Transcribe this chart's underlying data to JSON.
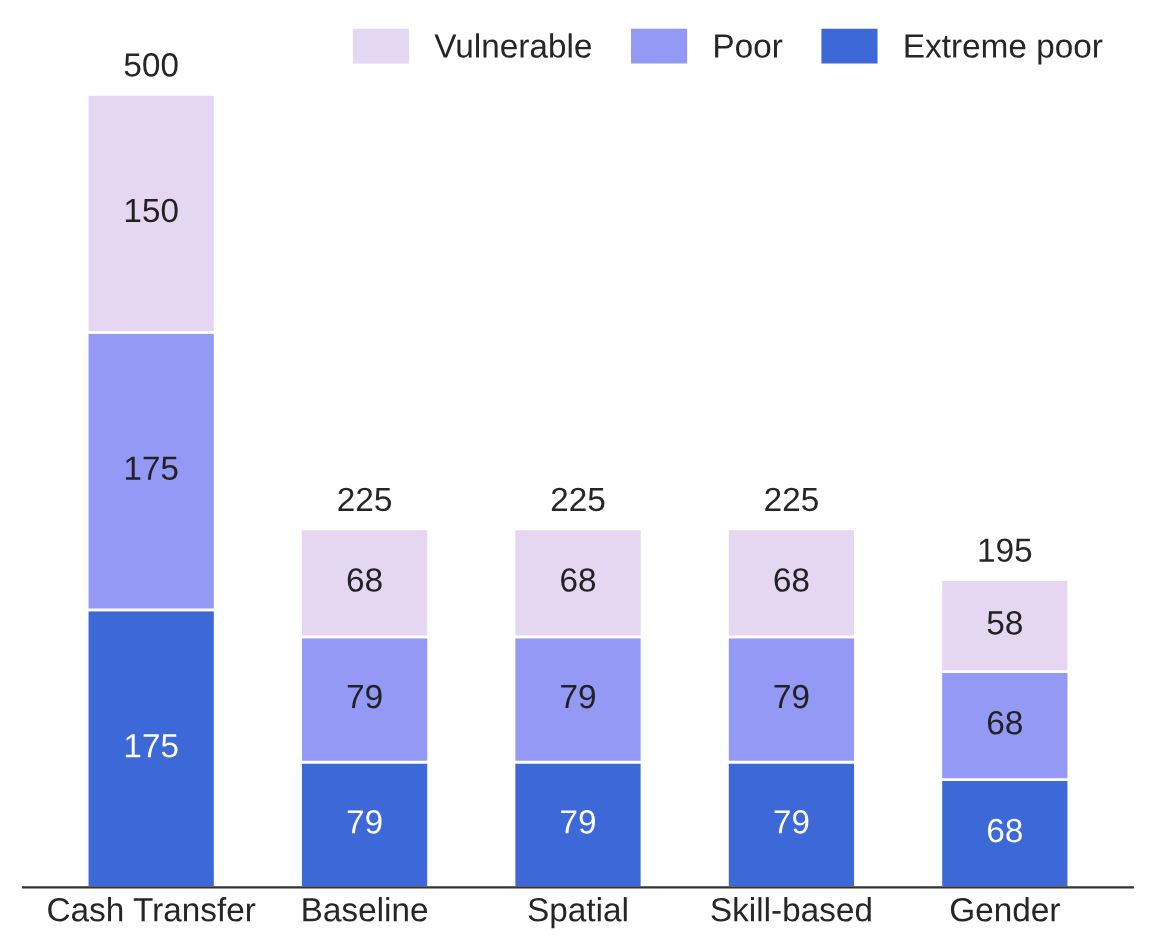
{
  "chart_data": {
    "type": "bar",
    "stacked": true,
    "categories": [
      "Cash Transfer",
      "Baseline",
      "Spatial",
      "Skill-based",
      "Gender"
    ],
    "series": [
      {
        "name": "Extreme poor",
        "color": "#3d68d8",
        "values": [
          175,
          79,
          79,
          79,
          68
        ]
      },
      {
        "name": "Poor",
        "color": "#9499f6",
        "values": [
          175,
          79,
          79,
          79,
          68
        ]
      },
      {
        "name": "Vulnerable",
        "color": "#e5d6f2",
        "values": [
          150,
          68,
          68,
          68,
          58
        ]
      }
    ],
    "data_labels": true,
    "totals": [
      "500",
      "225",
      "225",
      "225",
      "195"
    ],
    "legend": "top right",
    "grid": false
  }
}
